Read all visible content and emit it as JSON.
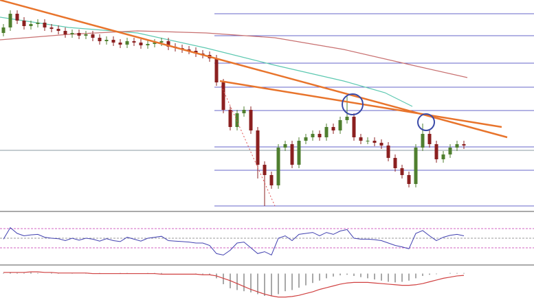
{
  "chart_data": {
    "type": "candlestick",
    "ylim": [
      5,
      310
    ],
    "up_color": "#4f7f2f",
    "down_color": "#8b2020",
    "open": [
      262,
      270,
      290,
      280,
      272,
      275,
      277,
      270,
      268,
      265,
      260,
      262,
      258,
      260,
      255,
      250,
      252,
      248,
      245,
      250,
      248,
      244,
      246,
      248,
      250,
      242,
      240,
      238,
      236,
      232,
      230,
      225,
      190,
      150,
      125,
      145,
      150,
      120,
      70,
      55,
      40,
      95,
      100,
      70,
      105,
      110,
      115,
      110,
      125,
      120,
      135,
      140,
      110,
      105,
      105,
      102,
      98,
      80,
      65,
      55,
      42,
      95,
      115,
      100,
      78,
      85,
      95,
      100
    ],
    "high": [
      275,
      295,
      295,
      285,
      280,
      282,
      282,
      275,
      273,
      270,
      267,
      267,
      265,
      265,
      260,
      257,
      257,
      253,
      255,
      255,
      253,
      251,
      253,
      255,
      255,
      247,
      245,
      243,
      241,
      237,
      235,
      230,
      195,
      155,
      150,
      155,
      155,
      125,
      75,
      60,
      100,
      105,
      105,
      110,
      115,
      120,
      120,
      130,
      130,
      140,
      170,
      145,
      115,
      110,
      110,
      107,
      103,
      85,
      70,
      60,
      100,
      130,
      120,
      105,
      90,
      100,
      105,
      105
    ],
    "low": [
      257,
      265,
      275,
      267,
      267,
      270,
      265,
      263,
      260,
      255,
      255,
      253,
      253,
      250,
      245,
      245,
      243,
      240,
      240,
      243,
      239,
      239,
      241,
      243,
      237,
      235,
      233,
      231,
      227,
      225,
      220,
      185,
      145,
      120,
      120,
      140,
      115,
      50,
      10,
      35,
      35,
      90,
      65,
      65,
      100,
      105,
      105,
      105,
      115,
      115,
      130,
      105,
      100,
      100,
      97,
      93,
      75,
      60,
      50,
      37,
      37,
      90,
      95,
      73,
      73,
      80,
      90,
      93
    ],
    "close": [
      270,
      290,
      280,
      272,
      275,
      277,
      270,
      268,
      265,
      260,
      262,
      258,
      260,
      255,
      250,
      252,
      248,
      245,
      250,
      248,
      244,
      246,
      248,
      250,
      242,
      240,
      238,
      236,
      232,
      230,
      225,
      190,
      150,
      125,
      145,
      150,
      120,
      70,
      55,
      40,
      95,
      100,
      70,
      105,
      110,
      115,
      110,
      125,
      120,
      135,
      140,
      110,
      105,
      105,
      102,
      98,
      80,
      65,
      55,
      42,
      95,
      115,
      100,
      78,
      85,
      95,
      100,
      98
    ],
    "levels": {
      "values": [
        290,
        258,
        218,
        183,
        149,
        96,
        62,
        10
      ],
      "color": "#6464c8"
    },
    "price_line": {
      "value": 91,
      "color": "#8a9aa0"
    },
    "trend_color": "#e8742c",
    "trendlines": [
      {
        "x": [
          -0.5,
          73.3
        ],
        "values": [
          310,
          110
        ]
      },
      {
        "x": [
          31.5,
          72.5
        ],
        "values": [
          192,
          125
        ]
      }
    ],
    "moving_averages": [
      {
        "color": "#5cc8b0",
        "x": [
          -0.5,
          9.5,
          19.5,
          29.5,
          39.5,
          49.5,
          55.5,
          59.5
        ],
        "values": [
          285,
          270,
          262,
          240,
          215,
          192,
          175,
          155
        ]
      },
      {
        "color": "#c87070",
        "x": [
          -0.5,
          9.5,
          19.5,
          29.5,
          39.5,
          49.5,
          59.5,
          67.5
        ],
        "values": [
          252,
          260,
          265,
          262,
          255,
          238,
          215,
          197
        ]
      }
    ],
    "rsi": {
      "ylim": [
        0,
        100
      ],
      "levels": [
        70,
        50,
        30
      ],
      "color": "#4040b0",
      "values": [
        48,
        72,
        60,
        55,
        57,
        58,
        52,
        50,
        49,
        45,
        50,
        46,
        50,
        48,
        44,
        49,
        45,
        43,
        52,
        48,
        44,
        50,
        52,
        54,
        45,
        44,
        43,
        42,
        40,
        40,
        35,
        18,
        15,
        25,
        40,
        42,
        30,
        18,
        22,
        15,
        50,
        55,
        45,
        58,
        60,
        62,
        55,
        62,
        58,
        65,
        68,
        50,
        48,
        48,
        47,
        45,
        40,
        35,
        32,
        28,
        60,
        66,
        55,
        45,
        52,
        56,
        58,
        55
      ]
    },
    "macd": {
      "ylim": [
        -45,
        10
      ],
      "hist_color": "#a8a8a8",
      "signal_color": "#d04040",
      "histogram": [
        1,
        2,
        1,
        1,
        2,
        1,
        0,
        1,
        1,
        0,
        1,
        0,
        1,
        0,
        1,
        0,
        0,
        1,
        1,
        0,
        0,
        1,
        1,
        1,
        0,
        0,
        0,
        0,
        -1,
        -1,
        -2,
        -8,
        -18,
        -25,
        -28,
        -30,
        -32,
        -35,
        -38,
        -38,
        -35,
        -30,
        -28,
        -24,
        -20,
        -16,
        -12,
        -8,
        -5,
        -3,
        -2,
        -4,
        -6,
        -8,
        -10,
        -12,
        -14,
        -15,
        -14,
        -12,
        -8,
        -4,
        -2,
        -1,
        0,
        1,
        1,
        1
      ],
      "signal": [
        2,
        2,
        2,
        2,
        3,
        3,
        2,
        2,
        1,
        1,
        1,
        1,
        1,
        0,
        0,
        0,
        0,
        0,
        0,
        0,
        0,
        0,
        0,
        -1,
        -1,
        -1,
        -1,
        -1,
        -1,
        -2,
        -2,
        -4,
        -8,
        -12,
        -17,
        -22,
        -27,
        -31,
        -35,
        -38,
        -40,
        -40,
        -39,
        -37,
        -34,
        -31,
        -27,
        -24,
        -21,
        -18,
        -16,
        -15,
        -15,
        -15,
        -16,
        -17,
        -18,
        -19,
        -20,
        -20,
        -19,
        -17,
        -14,
        -11,
        -8,
        -6,
        -4,
        -3
      ]
    }
  }
}
